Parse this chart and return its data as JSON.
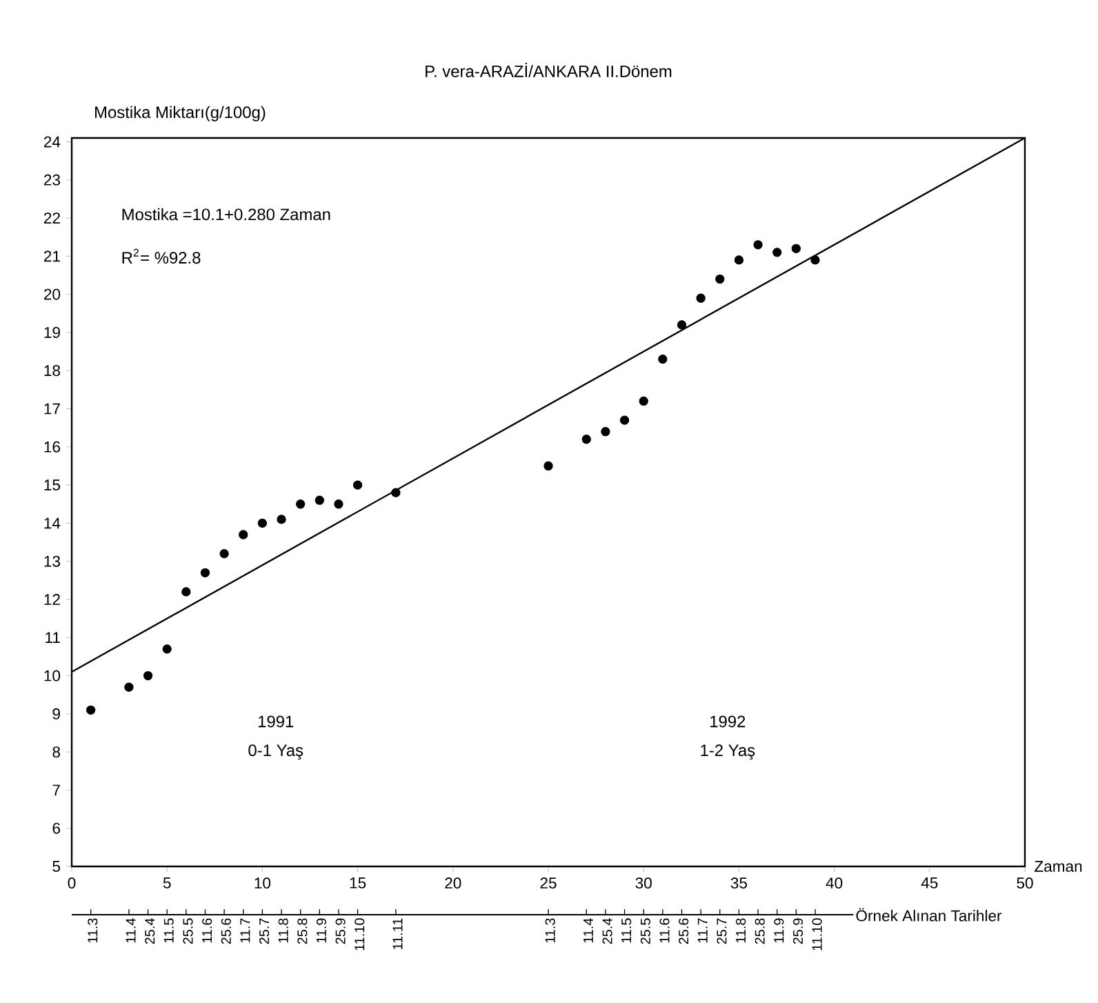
{
  "chart_data": {
    "type": "scatter",
    "title": "P. vera-ARAZİ/ANKARA  II.Dönem",
    "xlabel": "Zaman",
    "ylabel": "Mostika Miktarı(g/100g)",
    "xlim": [
      0,
      50
    ],
    "xticks": [
      0,
      5,
      10,
      15,
      20,
      25,
      30,
      35,
      40,
      45,
      50
    ],
    "ylim": [
      5,
      24.1
    ],
    "yticks": [
      5,
      6,
      7,
      8,
      9,
      10,
      11,
      12,
      13,
      14,
      15,
      16,
      17,
      18,
      19,
      20,
      21,
      22,
      23,
      24
    ],
    "series": [
      {
        "color": "#000000",
        "marker": "circle",
        "x": [
          1,
          3,
          4,
          5,
          6,
          7,
          8,
          9,
          10,
          11,
          12,
          13,
          14,
          15,
          17,
          25,
          27,
          28,
          29,
          30,
          31,
          32,
          33,
          34,
          35,
          36,
          37,
          38,
          39
        ],
        "values": [
          9.1,
          9.7,
          10.0,
          10.7,
          12.2,
          12.7,
          13.2,
          13.7,
          14.0,
          14.1,
          14.5,
          14.6,
          14.5,
          15.0,
          14.8,
          15.5,
          16.2,
          16.4,
          16.7,
          17.2,
          18.3,
          19.2,
          19.9,
          20.4,
          20.9,
          21.3,
          21.1,
          21.2,
          20.9
        ]
      },
      {
        "type": "line",
        "color": "#000000",
        "marker": "none",
        "x": [
          0,
          50
        ],
        "values": [
          10.1,
          24.1
        ]
      }
    ],
    "annotations": [
      "Mostika =10.1+0.280 Zaman",
      "R$^{2}$= %92.8",
      "1991",
      "0-1 Yaş",
      "1992",
      "1-2 Yaş",
      "Örnek Alınan Tarihler",
      {
        "text": "11.3",
        "x": 1
      },
      {
        "text": "11.4",
        "x": 3
      },
      {
        "text": "25.4",
        "x": 4
      },
      {
        "text": "11.5",
        "x": 5
      },
      {
        "text": "25.5",
        "x": 6
      },
      {
        "text": "11.6",
        "x": 7
      },
      {
        "text": "25.6",
        "x": 8
      },
      {
        "text": "11.7",
        "x": 9
      },
      {
        "text": "25.7",
        "x": 10
      },
      {
        "text": "11.8",
        "x": 11
      },
      {
        "text": "25.8",
        "x": 12
      },
      {
        "text": "11.9",
        "x": 13
      },
      {
        "text": "25.9",
        "x": 14
      },
      {
        "text": "11.10",
        "x": 15
      },
      {
        "text": "11.11",
        "x": 17
      },
      {
        "text": "11.3",
        "x": 25
      },
      {
        "text": "11.4",
        "x": 27
      },
      {
        "text": "25.4",
        "x": 28
      },
      {
        "text": "11.5",
        "x": 29
      },
      {
        "text": "25.5",
        "x": 30
      },
      {
        "text": "11.6",
        "x": 31
      },
      {
        "text": "25.6",
        "x": 32
      },
      {
        "text": "11.7",
        "x": 33
      },
      {
        "text": "25.7",
        "x": 34
      },
      {
        "text": "11.8",
        "x": 35
      },
      {
        "text": "25.8",
        "x": 36
      },
      {
        "text": "11.9",
        "x": 37
      },
      {
        "text": "25.9",
        "x": 38
      },
      {
        "text": "11.10",
        "x": 39
      }
    ],
    "grid": false
  }
}
